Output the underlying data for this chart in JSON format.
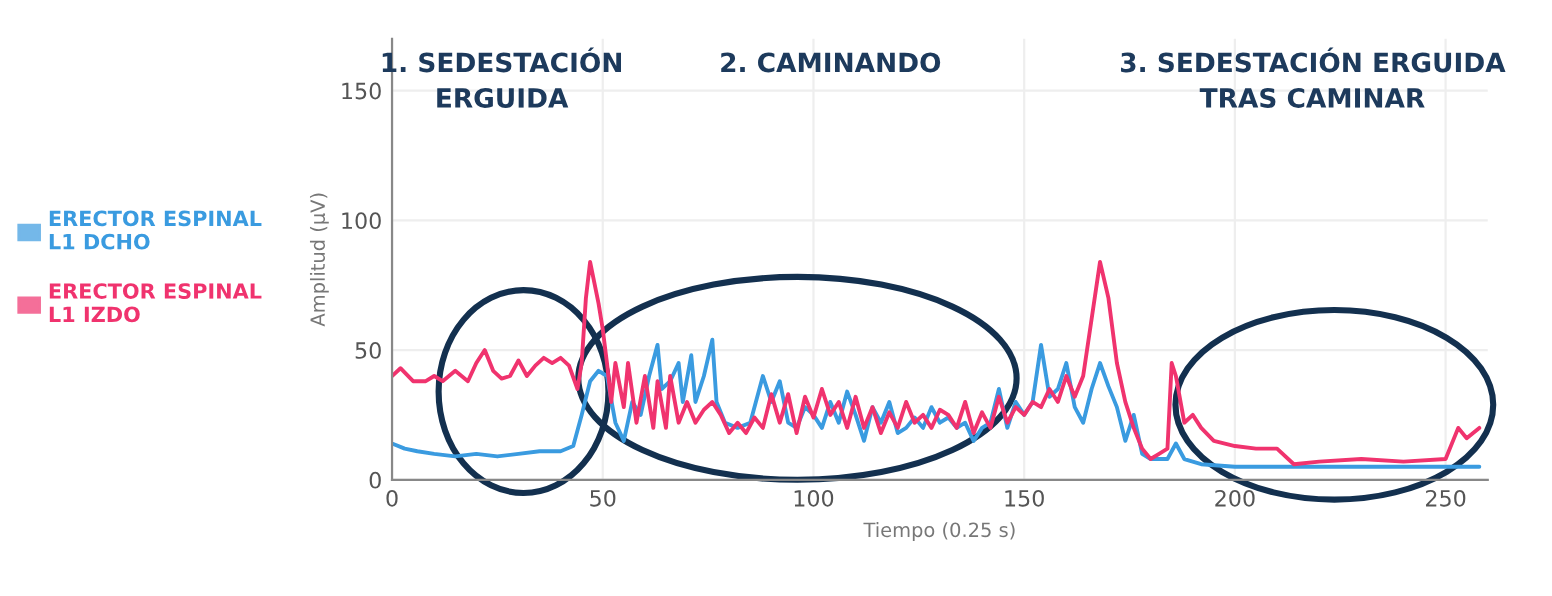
{
  "chart_data": {
    "type": "line",
    "xlabel": "Tiempo (0.25 s)",
    "ylabel": "Amplitud (µV)",
    "xlim": [
      0,
      260
    ],
    "ylim": [
      0,
      170
    ],
    "xticks": [
      0,
      50,
      100,
      150,
      200,
      250
    ],
    "yticks": [
      0,
      50,
      100,
      150
    ],
    "grid": true,
    "legend": "left",
    "marker": "none",
    "line_style": "solid",
    "annotations": [
      "1. SEDESTACIÓN\nERGUIDA",
      "2. CAMINANDO",
      "3. SEDESTACIÓN ERGUIDA\nTRAS CAMINAR"
    ],
    "series": [
      {
        "name": "ERECTOR ESPINAL\nL1 DCHO",
        "color": "#3a9be0",
        "x": [
          0,
          3,
          6,
          10,
          15,
          20,
          25,
          30,
          35,
          40,
          43,
          45,
          47,
          49,
          51,
          53,
          55,
          57,
          59,
          61,
          63,
          64,
          66,
          68,
          69,
          71,
          72,
          74,
          76,
          77,
          79,
          82,
          85,
          88,
          90,
          92,
          94,
          96,
          98,
          100,
          102,
          104,
          106,
          108,
          110,
          112,
          114,
          116,
          118,
          120,
          122,
          124,
          126,
          128,
          130,
          132,
          134,
          136,
          138,
          140,
          142,
          144,
          146,
          148,
          150,
          152,
          154,
          156,
          158,
          160,
          162,
          164,
          166,
          168,
          170,
          172,
          174,
          176,
          178,
          180,
          184,
          186,
          188,
          192,
          200,
          220,
          240,
          258
        ],
        "values": [
          14,
          12,
          11,
          10,
          9,
          10,
          9,
          10,
          11,
          11,
          13,
          25,
          38,
          42,
          40,
          22,
          15,
          30,
          25,
          40,
          52,
          35,
          38,
          45,
          30,
          48,
          30,
          40,
          54,
          30,
          22,
          20,
          22,
          40,
          30,
          38,
          22,
          20,
          28,
          25,
          20,
          30,
          22,
          34,
          25,
          15,
          28,
          22,
          30,
          18,
          20,
          24,
          20,
          28,
          22,
          24,
          20,
          22,
          15,
          20,
          22,
          35,
          20,
          30,
          25,
          30,
          52,
          32,
          35,
          45,
          28,
          22,
          35,
          45,
          36,
          28,
          15,
          25,
          10,
          8,
          8,
          14,
          8,
          6,
          5,
          5,
          5,
          5
        ]
      },
      {
        "name": "ERECTOR ESPINAL\nL1 IZDO",
        "color": "#f0336e",
        "x": [
          0,
          2,
          5,
          8,
          10,
          12,
          15,
          18,
          20,
          22,
          24,
          26,
          28,
          30,
          32,
          34,
          36,
          38,
          40,
          42,
          44,
          45,
          46,
          47,
          48,
          49,
          50,
          51,
          52,
          53,
          55,
          56,
          58,
          60,
          62,
          63,
          65,
          66,
          68,
          70,
          72,
          74,
          76,
          78,
          80,
          82,
          84,
          86,
          88,
          90,
          92,
          94,
          96,
          98,
          100,
          102,
          104,
          106,
          108,
          110,
          112,
          114,
          116,
          118,
          120,
          122,
          124,
          126,
          128,
          130,
          132,
          134,
          136,
          138,
          140,
          142,
          144,
          146,
          148,
          150,
          152,
          154,
          156,
          158,
          160,
          162,
          164,
          166,
          168,
          170,
          172,
          174,
          176,
          178,
          180,
          182,
          184,
          185,
          186,
          188,
          190,
          192,
          195,
          200,
          205,
          210,
          214,
          220,
          230,
          240,
          250,
          253,
          255,
          258
        ],
        "values": [
          40,
          43,
          38,
          38,
          40,
          38,
          42,
          38,
          45,
          50,
          42,
          39,
          40,
          46,
          40,
          44,
          47,
          45,
          47,
          44,
          35,
          45,
          70,
          84,
          76,
          68,
          58,
          45,
          30,
          45,
          28,
          45,
          22,
          40,
          20,
          38,
          20,
          40,
          22,
          30,
          22,
          27,
          30,
          25,
          18,
          22,
          18,
          24,
          20,
          33,
          22,
          33,
          18,
          32,
          24,
          35,
          25,
          30,
          20,
          32,
          20,
          28,
          18,
          26,
          20,
          30,
          22,
          25,
          20,
          27,
          25,
          20,
          30,
          18,
          26,
          20,
          32,
          22,
          28,
          25,
          30,
          28,
          35,
          30,
          40,
          32,
          40,
          62,
          84,
          70,
          45,
          30,
          20,
          12,
          8,
          10,
          12,
          45,
          40,
          22,
          25,
          20,
          15,
          13,
          12,
          12,
          6,
          7,
          8,
          7,
          8,
          20,
          16,
          20
        ]
      }
    ]
  }
}
